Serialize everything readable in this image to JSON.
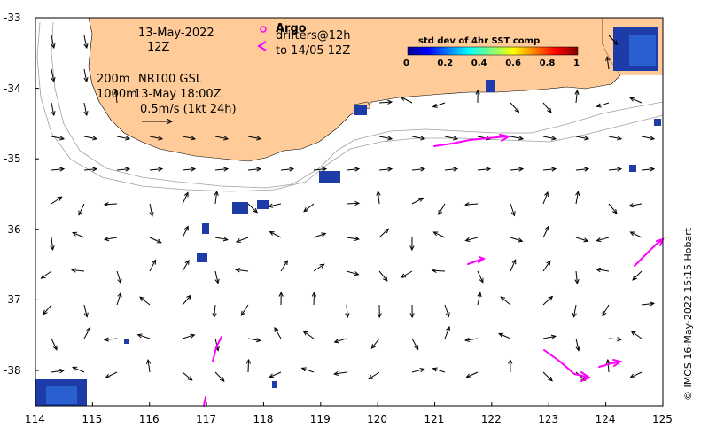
{
  "map": {
    "x_ticks": [
      "114",
      "115",
      "116",
      "117",
      "118",
      "119",
      "120",
      "121",
      "122",
      "123",
      "124",
      "125"
    ],
    "y_ticks": [
      "-33",
      "-34",
      "-35",
      "-36",
      "-37",
      "-38"
    ],
    "date_label": "13-May-2022",
    "time_label": "12Z",
    "depth_label_1": "200m",
    "product_label": "NRT00 GSL",
    "depth_label_2": "1000m",
    "valid_time_label": "13-May 18:00Z",
    "scale_label": "0.5m/s (1kt 24h)",
    "argo_label": "Argo",
    "drifters_label": "drifters@12h",
    "drifters_to_label": "to 14/05 12Z",
    "credit": "© IMOS 16-May-2022 15:15 Hobart"
  },
  "colorbar": {
    "title": "std dev of 4hr SST comp",
    "ticks": [
      "0",
      "0.2",
      "0.4",
      "0.6",
      "0.8",
      "1"
    ],
    "range": [
      0,
      1
    ]
  },
  "colors": {
    "land": "#ffcc99",
    "arrow": "#000000",
    "drifter": "#ff00ff",
    "isobath": "#a0a0a0",
    "sst_pixel": "#1e3ca8"
  },
  "legend_icons": {
    "argo": "circle-marker-icon",
    "drifter": "drifter-arrow-icon"
  }
}
